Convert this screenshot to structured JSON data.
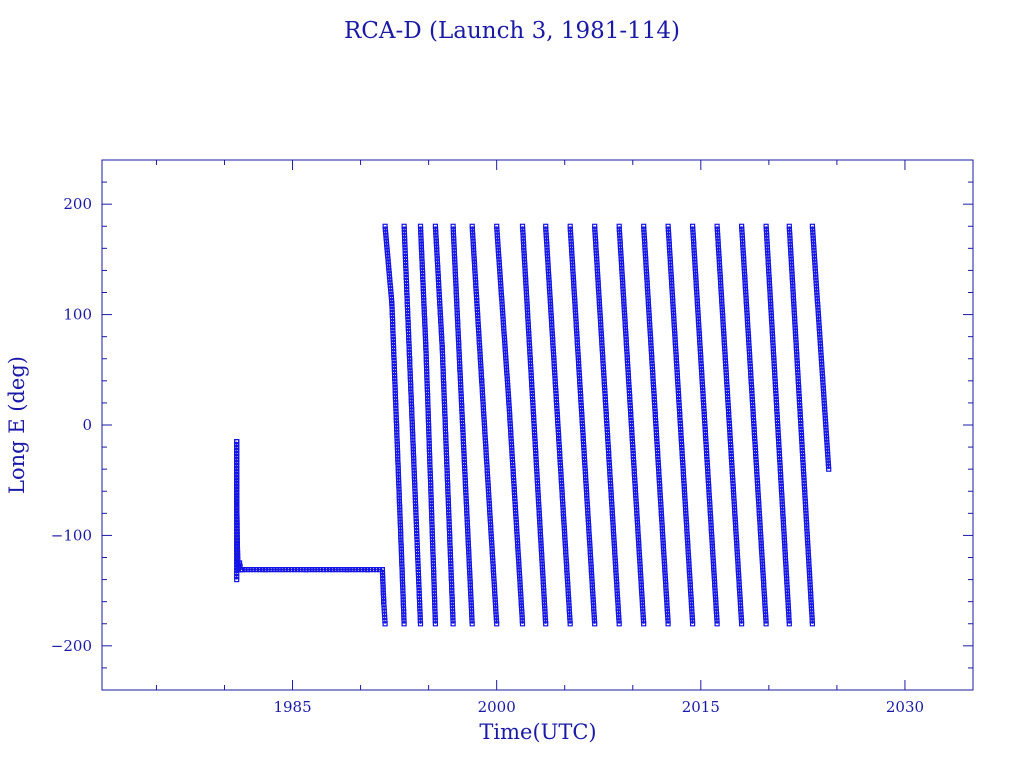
{
  "chart_data": {
    "type": "line",
    "title": "RCA-D (Launch 3, 1981-114)",
    "xlabel": "Time(UTC)",
    "ylabel": "Long E (deg)",
    "xlim": [
      1971,
      2035
    ],
    "ylim": [
      -240,
      240
    ],
    "x_ticks": [
      1985,
      2000,
      2015,
      2030
    ],
    "y_ticks": [
      -200,
      -100,
      0,
      100,
      200
    ],
    "x_tick_labels": [
      "1985",
      "2000",
      "2015",
      "2030"
    ],
    "y_tick_labels": [
      "−200",
      "−100",
      "0",
      "100",
      "200"
    ],
    "grid": false,
    "colors": {
      "line": "#1a1aa6",
      "marker": "#1414e6",
      "frame": "#1a1aa6"
    },
    "series": [
      {
        "marker": "square",
        "segments": [
          {
            "x": [
              1980.9,
              1980.9,
              1980.9,
              1980.95,
              1981.0,
              1981.1,
              1981.2,
              1981.3,
              1983.0,
              1986.0,
              1989.0,
              1990.5,
              1991.6
            ],
            "y": [
              -140,
              -15,
              -70,
              -110,
              -130,
              -125,
              -131,
              -131,
              -131,
              -131,
              -131,
              -131,
              -131
            ]
          },
          {
            "x": [
              1991.6,
              1991.7,
              1991.8
            ],
            "y": [
              -131,
              -160,
              -180
            ]
          },
          {
            "x": [
              1991.8,
              1992.3,
              1993.2
            ],
            "y": [
              180,
              110,
              -180
            ]
          },
          {
            "x": [
              1993.2,
              1993.6,
              1994.4
            ],
            "y": [
              180,
              60,
              -180
            ]
          },
          {
            "x": [
              1994.4,
              1994.8,
              1995.5
            ],
            "y": [
              180,
              70,
              -180
            ]
          },
          {
            "x": [
              1995.5,
              1996.0,
              1996.8
            ],
            "y": [
              180,
              70,
              -180
            ]
          },
          {
            "x": [
              1996.8,
              1997.3,
              1998.2
            ],
            "y": [
              180,
              50,
              -180
            ]
          },
          {
            "x": [
              1998.2,
              1998.9,
              2000.0
            ],
            "y": [
              180,
              40,
              -180
            ]
          },
          {
            "x": [
              2000.0,
              2000.9,
              2001.9
            ],
            "y": [
              180,
              20,
              -180
            ]
          },
          {
            "x": [
              2001.9,
              2003.6
            ],
            "y": [
              180,
              -180
            ]
          },
          {
            "x": [
              2003.6,
              2005.4
            ],
            "y": [
              180,
              -180
            ]
          },
          {
            "x": [
              2005.4,
              2007.2
            ],
            "y": [
              180,
              -180
            ]
          },
          {
            "x": [
              2007.2,
              2009.0
            ],
            "y": [
              180,
              -180
            ]
          },
          {
            "x": [
              2009.0,
              2010.8
            ],
            "y": [
              180,
              -180
            ]
          },
          {
            "x": [
              2010.8,
              2012.6
            ],
            "y": [
              180,
              -180
            ]
          },
          {
            "x": [
              2012.6,
              2014.4
            ],
            "y": [
              180,
              -180
            ]
          },
          {
            "x": [
              2014.4,
              2016.2
            ],
            "y": [
              180,
              -180
            ]
          },
          {
            "x": [
              2016.2,
              2018.0
            ],
            "y": [
              180,
              -180
            ]
          },
          {
            "x": [
              2018.0,
              2019.8
            ],
            "y": [
              180,
              -180
            ]
          },
          {
            "x": [
              2019.8,
              2021.5
            ],
            "y": [
              180,
              -180
            ]
          },
          {
            "x": [
              2021.5,
              2023.2
            ],
            "y": [
              180,
              -180
            ]
          },
          {
            "x": [
              2023.2,
              2024.4
            ],
            "y": [
              180,
              -40
            ]
          }
        ]
      }
    ]
  }
}
